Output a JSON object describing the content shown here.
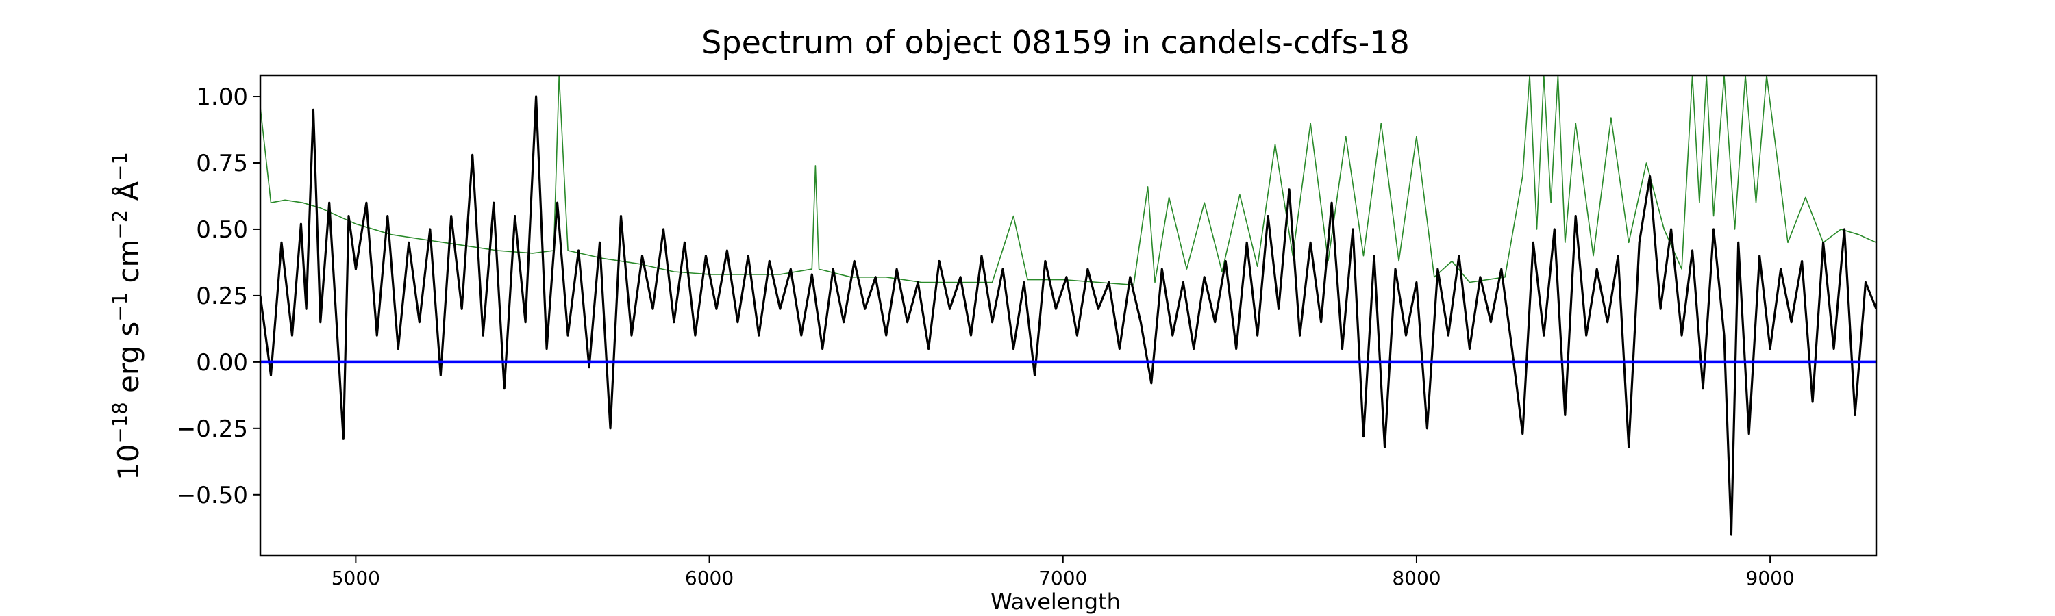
{
  "chart_data": {
    "type": "line",
    "title": "Spectrum of object 08159 in candels-cdfs-18",
    "xlabel": "Wavelength",
    "ylabel_html": "10<sup>−18</sup> erg s<sup>−1</sup> cm<sup>−2</sup> Å<sup>−1</sup>",
    "ylabel_parts": [
      {
        "text": "10",
        "sup": false
      },
      {
        "text": "−18",
        "sup": true
      },
      {
        "text": " erg s",
        "sup": false
      },
      {
        "text": "−1",
        "sup": true
      },
      {
        "text": " cm",
        "sup": false
      },
      {
        "text": "−2",
        "sup": true
      },
      {
        "text": " Å",
        "sup": false
      },
      {
        "text": "−1",
        "sup": true
      }
    ],
    "xlim": [
      4730,
      9300
    ],
    "ylim": [
      -0.73,
      1.08
    ],
    "xticks": [
      5000,
      6000,
      7000,
      8000,
      9000
    ],
    "xtick_labels": [
      "5000",
      "6000",
      "7000",
      "8000",
      "9000"
    ],
    "yticks": [
      -0.5,
      -0.25,
      0.0,
      0.25,
      0.5,
      0.75,
      1.0
    ],
    "ytick_labels": [
      "−0.50",
      "−0.25",
      "0.00",
      "0.25",
      "0.50",
      "0.75",
      "1.00"
    ],
    "grid": false,
    "series": [
      {
        "color": "#2a8a2a",
        "role": "error",
        "x": [
          4730,
          4760,
          4800,
          4850,
          4900,
          5000,
          5100,
          5200,
          5300,
          5400,
          5500,
          5560,
          5575,
          5600,
          5700,
          5800,
          5900,
          6000,
          6100,
          6200,
          6290,
          6300,
          6310,
          6400,
          6500,
          6600,
          6700,
          6800,
          6860,
          6900,
          7000,
          7100,
          7200,
          7240,
          7260,
          7300,
          7350,
          7400,
          7450,
          7500,
          7550,
          7600,
          7650,
          7700,
          7750,
          7800,
          7850,
          7900,
          7950,
          8000,
          8050,
          8100,
          8150,
          8200,
          8250,
          8300,
          8320,
          8340,
          8360,
          8380,
          8400,
          8420,
          8450,
          8500,
          8550,
          8600,
          8650,
          8700,
          8750,
          8780,
          8800,
          8820,
          8840,
          8870,
          8900,
          8930,
          8960,
          8990,
          9050,
          9100,
          9150,
          9200,
          9250,
          9300
        ],
        "y": [
          0.96,
          0.6,
          0.61,
          0.6,
          0.58,
          0.52,
          0.48,
          0.46,
          0.44,
          0.42,
          0.41,
          0.42,
          1.08,
          0.42,
          0.39,
          0.37,
          0.34,
          0.33,
          0.33,
          0.33,
          0.35,
          0.74,
          0.35,
          0.32,
          0.32,
          0.3,
          0.3,
          0.3,
          0.55,
          0.31,
          0.31,
          0.3,
          0.29,
          0.66,
          0.3,
          0.62,
          0.35,
          0.6,
          0.34,
          0.63,
          0.36,
          0.82,
          0.4,
          0.9,
          0.38,
          0.85,
          0.4,
          0.9,
          0.38,
          0.85,
          0.32,
          0.38,
          0.3,
          0.31,
          0.32,
          0.7,
          1.08,
          0.5,
          1.08,
          0.6,
          1.08,
          0.45,
          0.9,
          0.4,
          0.92,
          0.45,
          0.75,
          0.5,
          0.35,
          1.08,
          0.6,
          1.08,
          0.55,
          1.08,
          0.5,
          1.08,
          0.6,
          1.08,
          0.45,
          0.62,
          0.45,
          0.5,
          0.48,
          0.45
        ]
      },
      {
        "color": "#000000",
        "role": "flux",
        "x": [
          4730,
          4760,
          4790,
          4820,
          4845,
          4860,
          4880,
          4900,
          4925,
          4950,
          4965,
          4980,
          5000,
          5030,
          5060,
          5090,
          5120,
          5150,
          5180,
          5210,
          5240,
          5270,
          5300,
          5330,
          5360,
          5390,
          5420,
          5450,
          5480,
          5510,
          5540,
          5570,
          5600,
          5630,
          5660,
          5690,
          5720,
          5750,
          5780,
          5810,
          5840,
          5870,
          5900,
          5930,
          5960,
          5990,
          6020,
          6050,
          6080,
          6110,
          6140,
          6170,
          6200,
          6230,
          6260,
          6290,
          6320,
          6350,
          6380,
          6410,
          6440,
          6470,
          6500,
          6530,
          6560,
          6590,
          6620,
          6650,
          6680,
          6710,
          6740,
          6770,
          6800,
          6830,
          6860,
          6890,
          6920,
          6950,
          6980,
          7010,
          7040,
          7070,
          7100,
          7130,
          7160,
          7190,
          7220,
          7250,
          7280,
          7310,
          7340,
          7370,
          7400,
          7430,
          7460,
          7490,
          7520,
          7550,
          7580,
          7610,
          7640,
          7670,
          7700,
          7730,
          7760,
          7790,
          7820,
          7850,
          7880,
          7910,
          7940,
          7970,
          8000,
          8030,
          8060,
          8090,
          8120,
          8150,
          8180,
          8210,
          8240,
          8270,
          8300,
          8330,
          8360,
          8390,
          8420,
          8450,
          8480,
          8510,
          8540,
          8570,
          8600,
          8630,
          8660,
          8690,
          8720,
          8750,
          8780,
          8810,
          8840,
          8870,
          8890,
          8910,
          8940,
          8970,
          9000,
          9030,
          9060,
          9090,
          9120,
          9150,
          9180,
          9210,
          9240,
          9270,
          9300
        ],
        "y": [
          0.25,
          -0.05,
          0.45,
          0.1,
          0.52,
          0.2,
          0.95,
          0.15,
          0.6,
          0.05,
          -0.29,
          0.55,
          0.35,
          0.6,
          0.1,
          0.55,
          0.05,
          0.45,
          0.15,
          0.5,
          -0.05,
          0.55,
          0.2,
          0.78,
          0.1,
          0.6,
          -0.1,
          0.55,
          0.15,
          1.0,
          0.05,
          0.6,
          0.1,
          0.42,
          -0.02,
          0.45,
          -0.25,
          0.55,
          0.1,
          0.4,
          0.2,
          0.5,
          0.15,
          0.45,
          0.1,
          0.4,
          0.2,
          0.42,
          0.15,
          0.4,
          0.1,
          0.38,
          0.2,
          0.35,
          0.1,
          0.33,
          0.05,
          0.35,
          0.15,
          0.38,
          0.2,
          0.32,
          0.1,
          0.35,
          0.15,
          0.3,
          0.05,
          0.38,
          0.2,
          0.32,
          0.1,
          0.4,
          0.15,
          0.35,
          0.05,
          0.3,
          -0.05,
          0.38,
          0.2,
          0.32,
          0.1,
          0.35,
          0.2,
          0.3,
          0.05,
          0.32,
          0.15,
          -0.08,
          0.35,
          0.1,
          0.3,
          0.05,
          0.32,
          0.15,
          0.38,
          0.05,
          0.45,
          0.1,
          0.55,
          0.2,
          0.65,
          0.1,
          0.45,
          0.15,
          0.6,
          0.05,
          0.5,
          -0.28,
          0.4,
          -0.32,
          0.35,
          0.1,
          0.3,
          -0.25,
          0.35,
          0.1,
          0.4,
          0.05,
          0.32,
          0.15,
          0.35,
          0.05,
          -0.27,
          0.45,
          0.1,
          0.5,
          -0.2,
          0.55,
          0.1,
          0.35,
          0.15,
          0.4,
          -0.32,
          0.45,
          0.7,
          0.2,
          0.5,
          0.1,
          0.42,
          -0.1,
          0.5,
          0.1,
          -0.65,
          0.45,
          -0.27,
          0.4,
          0.05,
          0.35,
          0.15,
          0.38,
          -0.15,
          0.45,
          0.05,
          0.5,
          -0.2,
          0.3,
          0.2
        ]
      },
      {
        "color": "#0000ff",
        "role": "zero-line",
        "x": [
          4730,
          9300
        ],
        "y": [
          0.0,
          0.0
        ]
      }
    ]
  }
}
